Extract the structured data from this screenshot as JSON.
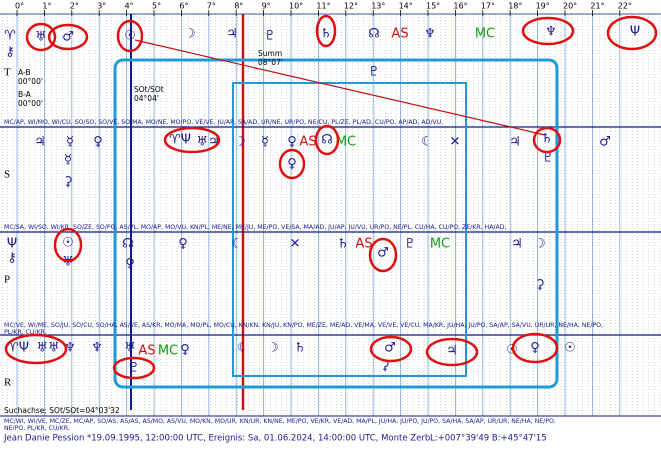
{
  "degrees": [
    "0°",
    "1°",
    "2°",
    "3°",
    "4°",
    "5°",
    "6°",
    "7°",
    "8°",
    "9°",
    "10°",
    "11°",
    "12°",
    "13°",
    "14°",
    "15°",
    "16°",
    "17°",
    "18°",
    "19°",
    "20°",
    "21°",
    "22°"
  ],
  "rows": [
    {
      "label": "T",
      "glyphs": [
        "♈",
        "♅",
        "♂",
        "☉",
        "☽",
        "♃",
        "♇",
        "♄",
        "☊",
        "AS",
        "♆",
        "MC",
        "♆",
        "Ψ",
        "⚷",
        "♇"
      ]
    },
    {
      "label": "S",
      "glyphs": [
        "♃",
        "☿",
        "♀",
        "♈Ψ",
        "♅♃",
        "☽",
        "☿",
        "♀",
        "AS",
        "☊",
        "MC",
        "☾",
        "✕",
        "♃",
        "♄",
        "♂",
        "☿",
        "♀",
        "♇",
        "⚳"
      ]
    },
    {
      "label": "P",
      "glyphs": [
        "Ψ",
        "☉",
        "☊",
        "♀",
        "☾",
        "✕",
        "♄",
        "AS",
        "♂",
        "♇",
        "MC",
        "♃",
        "☽",
        "⚷",
        "♅",
        "♀",
        "⚳"
      ]
    },
    {
      "label": "R",
      "glyphs": [
        "♈Ψ",
        "♅♅",
        "♆",
        "♆",
        "♅",
        "AS",
        "MC",
        "♀",
        "☾",
        "☽",
        "♄",
        "♂",
        "♃",
        "☉",
        "♀",
        "☉",
        "♇",
        "⚳"
      ]
    }
  ],
  "notes": {
    "summ": "Summ",
    "summ_value": "08°07'",
    "ab": "A-B",
    "ab_value": "00°00'",
    "ba": "B-A",
    "ba_value": "00°00'",
    "axis": "SOt/SOt",
    "axis_value": "04°04'"
  },
  "midpoints": [
    "MC/AP, WI/MO, WI/CU, SO/SO, SO/VE, SO/MA, MO/NE, MO/PO, VE/VE, JU/AP, SA/AD, UR/NE, UR/PO, NE/CU, PL/ZE, PL/AD, CU/PO, AP/AD, AD/VU,",
    "MC/SA, WI/SO, WI/KR, SO/ZE, SO/PO, AS/PL, MO/AP, MO/VU, KN/PL, ME/NE, ME/JU, ME/PO, VE/SA, MA/AD, JU/AP, JU/VU, UR/PO, NE/PL, CU/HA, CU/PO, ZE/KR, HA/AD,",
    "MC/VE, WI/ME, SO/JU, SO/CU, SO/HA, AS/VE, AS/KR, MO/MA, MO/PL, MO/CU, KN/KN, KN/JU, KN/PO, ME/ZE, ME/AD, VE/MA, VE/VE, VE/CU, MA/KR, JU/HA, JU/PO, SA/AP, SA/VU, UR/UR, NE/HA, NE/PO,",
    "PL/KR, CU/KR,"
  ],
  "footer": {
    "search_axis": "Suchachse: SOt/SOt=04°03'32",
    "line1": "MC/WI, WI/VE, MC/ZE, MC/AP, SO/AS, AS/AS, AS/MO, AS/VU, MO/KN, MO/UR, KN/UR, KN/NE, ME/PO, VE/KR, VE/AD, MA/PL, JU/HA, JU/PO, JU/PO, SA/HA, SA/AP, UR/UR, NE/HA, NE/PO,",
    "line2": "NE/PO, PL/KR, CU/KR,",
    "person": "Jean Danie Pession  *19.09.1995, 12:00:00 UTC, Ereignis: Sa, 01.06.2024, 14:00:00 UTC, Monte Zerb",
    "coords": "L:+007°39'49 B:+45°47'15"
  }
}
